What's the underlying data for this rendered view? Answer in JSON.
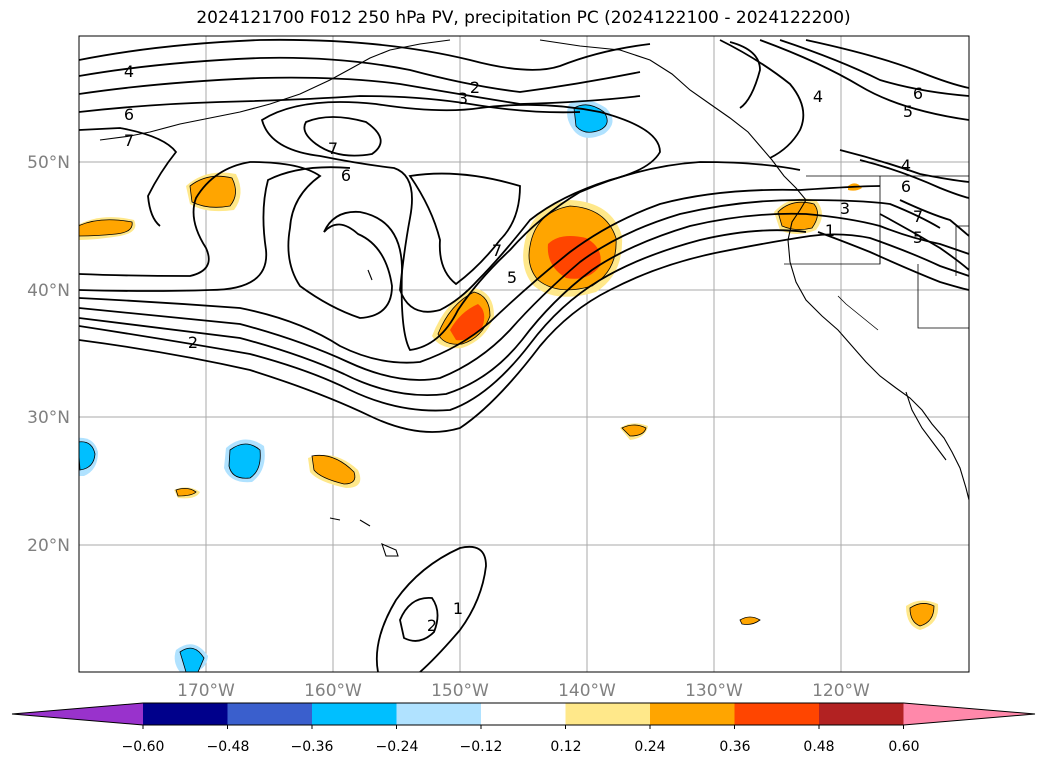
{
  "title": "2024121700 F012 250 hPa PV, precipitation PC (2024122100 - 2024122200)",
  "map": {
    "lat_labels": [
      "50°N",
      "40°N",
      "30°N",
      "20°N"
    ],
    "lon_labels": [
      "170°W",
      "160°W",
      "150°W",
      "140°W",
      "130°W",
      "120°W"
    ],
    "gridline_color": "#aaaaaa",
    "axis_label_color": "#808080"
  },
  "contour_labels": {
    "l4a": "4",
    "l6a": "6",
    "l7a": "7",
    "l2a": "2",
    "l3a": "3",
    "l7b": "7",
    "l6b": "6",
    "l7c": "7",
    "l5a": "5",
    "l2b": "2",
    "l4b": "4",
    "l6c": "6",
    "l5b": "5",
    "l4c": "4",
    "l6d": "6",
    "l7d": "7",
    "l5c": "5",
    "l1a": "1",
    "l3b": "3",
    "l2c": "2",
    "l1b": "1"
  },
  "colorbar": {
    "ticks": [
      "−0.60",
      "−0.48",
      "−0.36",
      "−0.24",
      "−0.12",
      "0.12",
      "0.24",
      "0.36",
      "0.48",
      "0.60"
    ],
    "colors": [
      "#9932cc",
      "#00008b",
      "#3a5fcd",
      "#00bfff",
      "#b0e2ff",
      "#ffffff",
      "#ffe88a",
      "#ffa500",
      "#ff4500",
      "#b22222",
      "#ff88aa"
    ]
  }
}
